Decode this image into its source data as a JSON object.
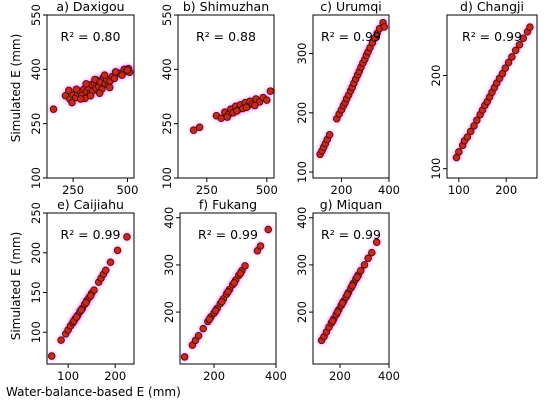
{
  "figure": {
    "ylabel_top": "Simulated E (mm)",
    "ylabel_bottom": "Simulated E (mm)",
    "xlabel": "Water-balance-based E (mm)"
  },
  "colors": {
    "marker_fill": "#c62a1c",
    "marker_edge": "#4a0a08",
    "marker_glow": "#ff66ff",
    "axes": "#000000"
  },
  "chart_data": [
    {
      "type": "scatter",
      "title": "a) Daxigou",
      "annotation": "R² = 0.80",
      "xticks": [
        250,
        500
      ],
      "yticks": [
        100,
        250,
        400,
        550
      ],
      "xlim": [
        130,
        530
      ],
      "ylim": [
        100,
        550
      ],
      "x": [
        160,
        215,
        235,
        250,
        262,
        270,
        280,
        290,
        300,
        305,
        312,
        320,
        328,
        335,
        340,
        348,
        355,
        360,
        368,
        375,
        382,
        390,
        398,
        405,
        412,
        420,
        430,
        440,
        455,
        470,
        485,
        495,
        505,
        510,
        230,
        245,
        265,
        285,
        310,
        330,
        350,
        372,
        395,
        418,
        445,
        475,
        500
      ],
      "y": [
        290,
        327,
        318,
        330,
        322,
        335,
        340,
        328,
        345,
        320,
        338,
        350,
        332,
        358,
        340,
        362,
        348,
        370,
        352,
        365,
        345,
        378,
        360,
        372,
        355,
        368,
        380,
        375,
        390,
        388,
        400,
        395,
        402,
        392,
        342,
        308,
        345,
        318,
        360,
        327,
        372,
        334,
        384,
        350,
        393,
        384,
        398
      ]
    },
    {
      "type": "scatter",
      "title": "b) Shimuzhan",
      "annotation": "R² = 0.88",
      "xticks": [
        250,
        500
      ],
      "yticks": [
        100,
        250,
        400,
        550
      ],
      "xlim": [
        130,
        530
      ],
      "ylim": [
        100,
        550
      ],
      "x": [
        195,
        220,
        290,
        310,
        325,
        340,
        350,
        360,
        370,
        380,
        390,
        400,
        410,
        420,
        430,
        440,
        455,
        470,
        485,
        500,
        515,
        335,
        375,
        415,
        450
      ],
      "y": [
        232,
        240,
        272,
        265,
        282,
        275,
        290,
        280,
        298,
        288,
        302,
        292,
        308,
        298,
        312,
        304,
        318,
        310,
        322,
        315,
        340,
        268,
        285,
        295,
        300
      ]
    },
    {
      "type": "scatter",
      "title": "c) Urumqi",
      "annotation": "R² = 0.99",
      "xticks": [
        200,
        400
      ],
      "yticks": [
        100,
        200,
        300
      ],
      "xlim": [
        80,
        400
      ],
      "ylim": [
        90,
        365
      ],
      "x": [
        110,
        118,
        125,
        132,
        140,
        150,
        180,
        190,
        200,
        208,
        215,
        222,
        230,
        238,
        245,
        252,
        260,
        268,
        275,
        282,
        290,
        298,
        305,
        312,
        320,
        330,
        340,
        350,
        360,
        375,
        380
      ],
      "y": [
        130,
        136,
        142,
        148,
        155,
        163,
        190,
        198,
        205,
        212,
        217,
        224,
        230,
        237,
        243,
        250,
        257,
        264,
        270,
        277,
        284,
        290,
        297,
        303,
        310,
        318,
        326,
        334,
        342,
        352,
        345
      ]
    },
    {
      "type": "scatter",
      "title": "d) Changji",
      "annotation": "R² = 0.99",
      "xticks": [
        100,
        200
      ],
      "yticks": [
        100,
        200
      ],
      "xlim": [
        75,
        265
      ],
      "ylim": [
        90,
        265
      ],
      "x": [
        95,
        100,
        108,
        112,
        118,
        125,
        132,
        138,
        145,
        150,
        155,
        160,
        165,
        170,
        175,
        180,
        186,
        192,
        198,
        205,
        212,
        220,
        228,
        236,
        245,
        250
      ],
      "y": [
        112,
        118,
        125,
        130,
        134,
        140,
        146,
        152,
        158,
        163,
        168,
        172,
        177,
        182,
        187,
        192,
        197,
        202,
        208,
        214,
        220,
        227,
        233,
        240,
        247,
        252
      ]
    },
    {
      "type": "scatter",
      "title": "e) Caijiahu",
      "annotation": "R² = 0.99",
      "xticks": [
        100,
        200
      ],
      "yticks": [
        100,
        150,
        200,
        250
      ],
      "xlim": [
        55,
        240
      ],
      "ylim": [
        60,
        250
      ],
      "x": [
        65,
        85,
        95,
        100,
        105,
        110,
        115,
        120,
        125,
        130,
        135,
        140,
        145,
        150,
        155,
        165,
        170,
        175,
        180,
        190,
        205,
        225,
        112,
        118,
        128,
        138,
        148
      ],
      "y": [
        70,
        90,
        98,
        103,
        108,
        112,
        117,
        121,
        126,
        130,
        135,
        140,
        144,
        149,
        153,
        163,
        168,
        173,
        178,
        188,
        203,
        220,
        114,
        119,
        128,
        137,
        146
      ]
    },
    {
      "type": "scatter",
      "title": "f) Fukang",
      "annotation": "R² = 0.99",
      "xticks": [
        200,
        400
      ],
      "yticks": [
        200,
        300,
        400
      ],
      "xlim": [
        90,
        400
      ],
      "ylim": [
        90,
        410
      ],
      "x": [
        105,
        130,
        140,
        150,
        165,
        180,
        190,
        200,
        210,
        220,
        230,
        240,
        250,
        260,
        270,
        280,
        290,
        300,
        340,
        350,
        375,
        185,
        205,
        225,
        245,
        265,
        285
      ],
      "y": [
        105,
        130,
        140,
        150,
        165,
        180,
        190,
        198,
        208,
        218,
        228,
        238,
        248,
        258,
        268,
        278,
        288,
        298,
        330,
        340,
        375,
        185,
        203,
        222,
        243,
        262,
        282
      ]
    },
    {
      "type": "scatter",
      "title": "g) Miquan",
      "annotation": "R² = 0.99",
      "xticks": [
        200,
        400
      ],
      "yticks": [
        200,
        300,
        400
      ],
      "xlim": [
        90,
        400
      ],
      "ylim": [
        90,
        410
      ],
      "x": [
        125,
        135,
        145,
        155,
        165,
        175,
        185,
        195,
        205,
        215,
        225,
        235,
        245,
        255,
        265,
        275,
        285,
        300,
        315,
        330,
        350,
        170,
        190,
        210,
        230,
        250,
        270
      ],
      "y": [
        140,
        148,
        158,
        168,
        177,
        186,
        195,
        205,
        214,
        223,
        232,
        242,
        251,
        261,
        270,
        279,
        288,
        300,
        314,
        326,
        348,
        181,
        200,
        219,
        237,
        256,
        274
      ]
    }
  ]
}
